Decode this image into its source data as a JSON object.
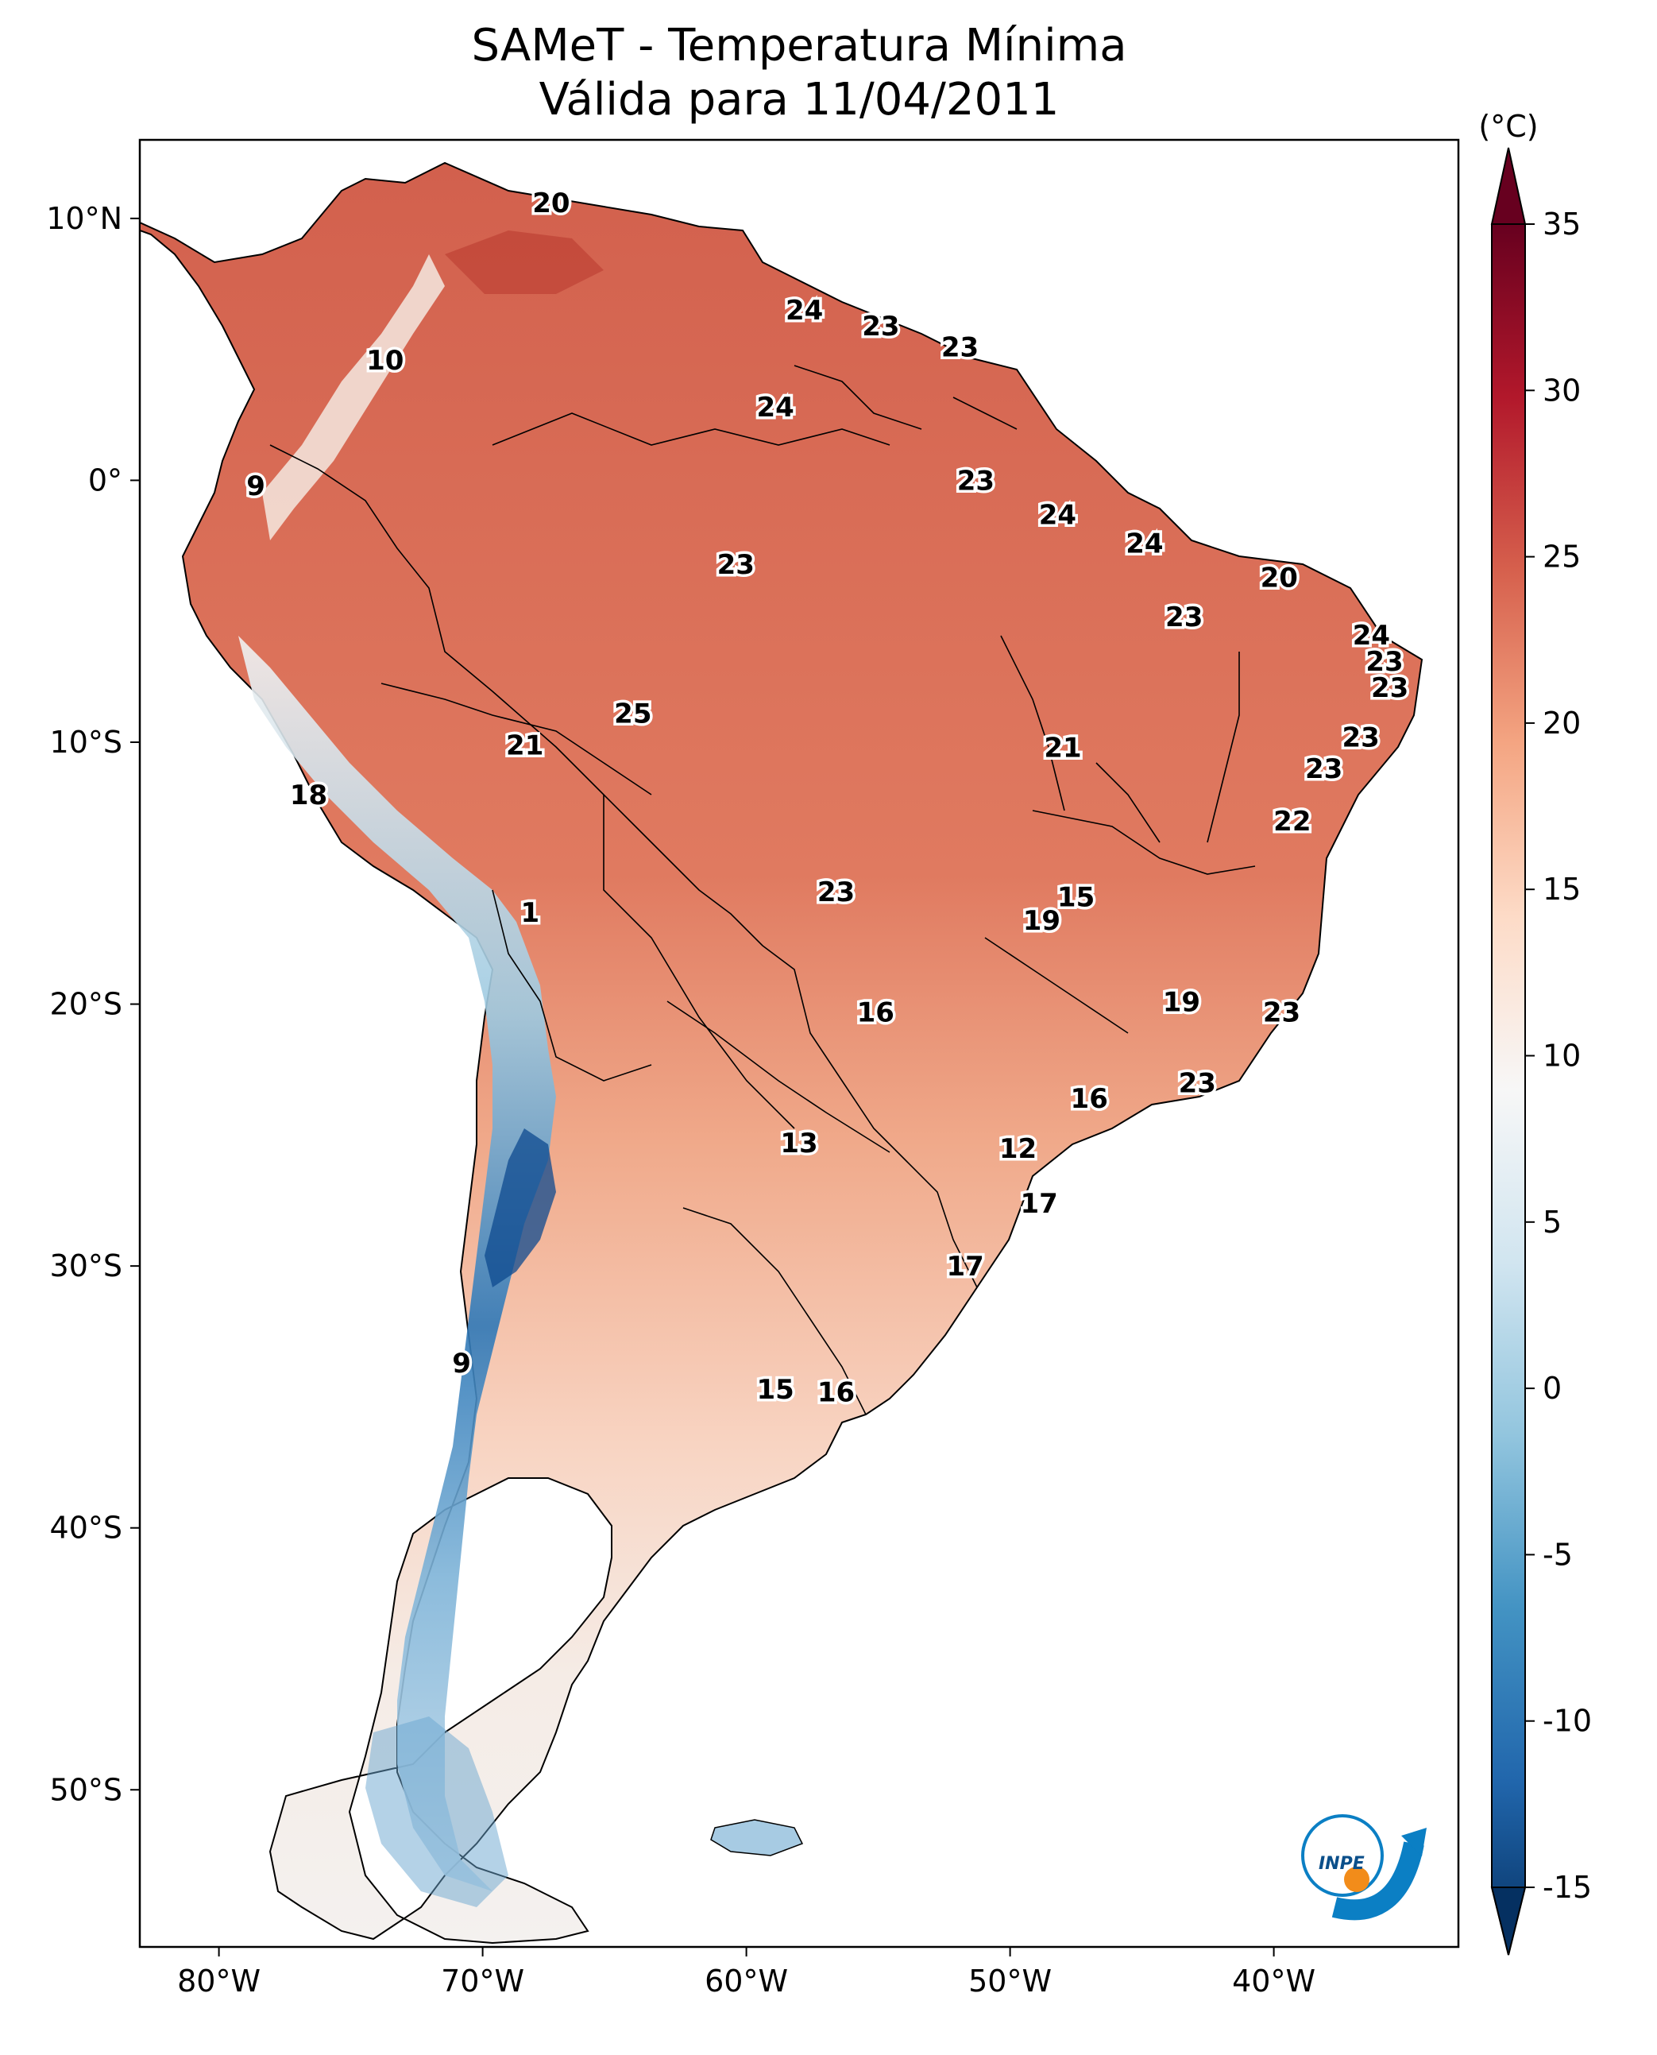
{
  "title": {
    "line1": "SAMeT - Temperatura Mínima",
    "line2": "Válida para 11/04/2011"
  },
  "map": {
    "lon_ticks": [
      "80°W",
      "70°W",
      "60°W",
      "50°W",
      "40°W"
    ],
    "lat_ticks": [
      "10°N",
      "0°",
      "10°S",
      "20°S",
      "30°S",
      "40°S",
      "50°S"
    ],
    "extent": {
      "lon": [
        -83,
        -33
      ],
      "lat": [
        -56,
        13
      ]
    },
    "contour_labels": [
      {
        "v": "20",
        "lon": -67.4,
        "lat": 10.6
      },
      {
        "v": "10",
        "lon": -73.7,
        "lat": 4.6
      },
      {
        "v": "24",
        "lon": -57.8,
        "lat": 6.5
      },
      {
        "v": "23",
        "lon": -54.9,
        "lat": 5.9
      },
      {
        "v": "23",
        "lon": -51.9,
        "lat": 5.1
      },
      {
        "v": "24",
        "lon": -58.9,
        "lat": 2.8
      },
      {
        "v": "9",
        "lon": -78.6,
        "lat": -0.2
      },
      {
        "v": "23",
        "lon": -51.3,
        "lat": 0.0
      },
      {
        "v": "24",
        "lon": -48.2,
        "lat": -1.3
      },
      {
        "v": "24",
        "lon": -44.9,
        "lat": -2.4
      },
      {
        "v": "20",
        "lon": -39.8,
        "lat": -3.7
      },
      {
        "v": "23",
        "lon": -60.4,
        "lat": -3.2
      },
      {
        "v": "23",
        "lon": -43.4,
        "lat": -5.2
      },
      {
        "v": "24",
        "lon": -36.3,
        "lat": -5.9
      },
      {
        "v": "23",
        "lon": -35.8,
        "lat": -6.9
      },
      {
        "v": "23",
        "lon": -35.6,
        "lat": -7.9
      },
      {
        "v": "25",
        "lon": -64.3,
        "lat": -8.9
      },
      {
        "v": "21",
        "lon": -68.4,
        "lat": -10.1
      },
      {
        "v": "21",
        "lon": -48.0,
        "lat": -10.2
      },
      {
        "v": "23",
        "lon": -36.7,
        "lat": -9.8
      },
      {
        "v": "23",
        "lon": -38.1,
        "lat": -11.0
      },
      {
        "v": "18",
        "lon": -76.6,
        "lat": -12.0
      },
      {
        "v": "22",
        "lon": -39.3,
        "lat": -13.0
      },
      {
        "v": "1",
        "lon": -68.2,
        "lat": -16.5
      },
      {
        "v": "23",
        "lon": -56.6,
        "lat": -15.7
      },
      {
        "v": "15",
        "lon": -47.5,
        "lat": -15.9
      },
      {
        "v": "19",
        "lon": -48.8,
        "lat": -16.8
      },
      {
        "v": "16",
        "lon": -55.1,
        "lat": -20.3
      },
      {
        "v": "19",
        "lon": -43.5,
        "lat": -19.9
      },
      {
        "v": "23",
        "lon": -39.7,
        "lat": -20.3
      },
      {
        "v": "16",
        "lon": -47.0,
        "lat": -23.6
      },
      {
        "v": "23",
        "lon": -42.9,
        "lat": -23.0
      },
      {
        "v": "13",
        "lon": -58.0,
        "lat": -25.3
      },
      {
        "v": "12",
        "lon": -49.7,
        "lat": -25.5
      },
      {
        "v": "17",
        "lon": -48.9,
        "lat": -27.6
      },
      {
        "v": "17",
        "lon": -51.7,
        "lat": -30.0
      },
      {
        "v": "9",
        "lon": -70.8,
        "lat": -33.7
      },
      {
        "v": "15",
        "lon": -58.9,
        "lat": -34.7
      },
      {
        "v": "16",
        "lon": -56.6,
        "lat": -34.8
      }
    ]
  },
  "colorbar": {
    "unit": "(°C)",
    "ticks": [
      "35",
      "30",
      "25",
      "20",
      "15",
      "10",
      "5",
      "0",
      "-5",
      "-10",
      "-15"
    ],
    "range": [
      -15,
      35
    ],
    "colors": [
      "#053061",
      "#2166ac",
      "#4393c3",
      "#92c5de",
      "#d1e5f0",
      "#f7f7f7",
      "#fddbc7",
      "#f4a582",
      "#d6604d",
      "#b2182b",
      "#67001f"
    ]
  },
  "logo": {
    "text": "INPE",
    "colors": {
      "blue": "#0b7fc4",
      "orange": "#f28c1a"
    }
  }
}
